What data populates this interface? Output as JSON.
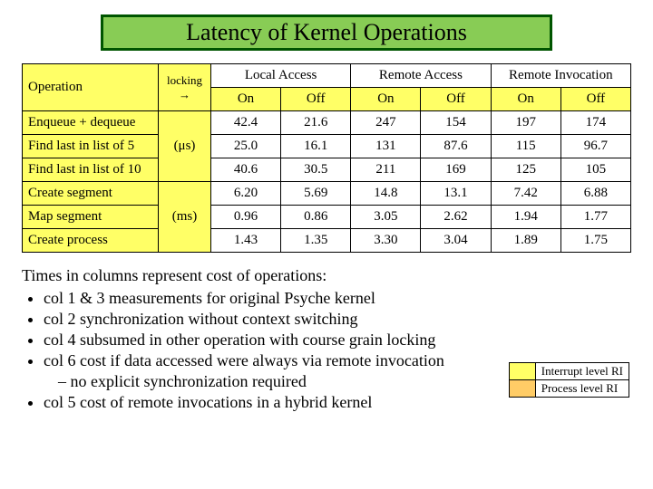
{
  "title": "Latency of Kernel Operations",
  "table": {
    "group_headers": [
      "Local Access",
      "Remote Access",
      "Remote Invocation"
    ],
    "op_header": "Operation",
    "unit_header_top": "locking",
    "unit_header_arrow": "→",
    "sub_headers": [
      "On",
      "Off",
      "On",
      "Off",
      "On",
      "Off"
    ],
    "unit_us": "(μs)",
    "unit_ms": "(ms)",
    "rows_us": [
      {
        "op": "Enqueue + dequeue",
        "v": [
          "42.4",
          "21.6",
          "247",
          "154",
          "197",
          "174"
        ]
      },
      {
        "op": "Find last in list of 5",
        "v": [
          "25.0",
          "16.1",
          "131",
          "87.6",
          "115",
          "96.7"
        ]
      },
      {
        "op": "Find last in list of 10",
        "v": [
          "40.6",
          "30.5",
          "211",
          "169",
          "125",
          "105"
        ]
      }
    ],
    "rows_ms": [
      {
        "op": "Create segment",
        "v": [
          "6.20",
          "5.69",
          "14.8",
          "13.1",
          "7.42",
          "6.88"
        ]
      },
      {
        "op": "Map segment",
        "v": [
          "0.96",
          "0.86",
          "3.05",
          "2.62",
          "1.94",
          "1.77"
        ]
      },
      {
        "op": "Create process",
        "v": [
          "1.43",
          "1.35",
          "3.30",
          "3.04",
          "1.89",
          "1.75"
        ]
      }
    ]
  },
  "notes": {
    "lead": "Times in columns represent cost of operations:",
    "items": [
      "col 1 & 3 measurements for original Psyche kernel",
      "col 2  synchronization without context switching",
      "col 4 subsumed in other operation with course grain locking",
      "col 6 cost if data accessed were always via remote invocation",
      "– no explicit synchronization required",
      "col 5 cost of remote invocations in a hybrid kernel"
    ]
  },
  "legend": {
    "rows": [
      {
        "color": "#ffff66",
        "label": "Interrupt level RI"
      },
      {
        "color": "#ffcc66",
        "label": "Process level RI"
      }
    ]
  },
  "colors": {
    "title_border": "#005500",
    "title_bg": "#88cc55",
    "highlight": "#ffff66"
  }
}
